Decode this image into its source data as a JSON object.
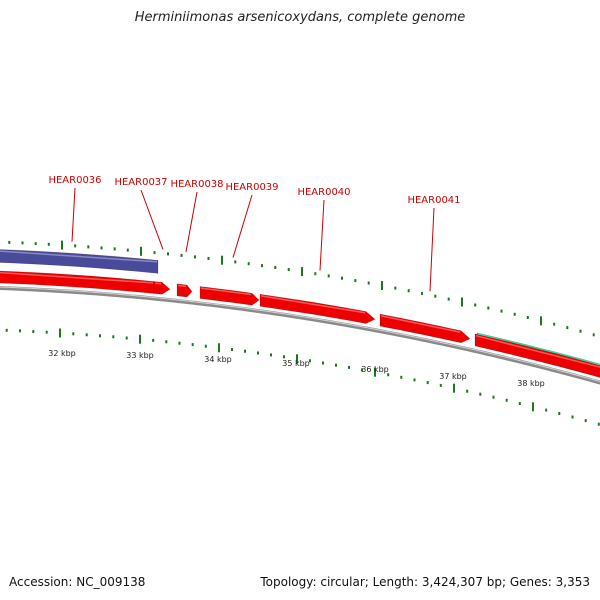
{
  "header": {
    "title": "Herminiimonas arsenicoxydans, complete genome"
  },
  "footer": {
    "accession": "Accession: NC_009138",
    "summary": "Topology: circular; Length: 3,424,307 bp; Genes: 3,353"
  },
  "colors": {
    "gene_label": "#cc0000",
    "gene_red": "#ee0000",
    "gene_purple": "#4a4a9a",
    "gene_green": "#22e8a0",
    "tick": "#1a7a1a",
    "backbone": "#8a8a8a"
  },
  "genes": [
    {
      "label": "HEAR0036"
    },
    {
      "label": "HEAR0037"
    },
    {
      "label": "HEAR0038"
    },
    {
      "label": "HEAR0039"
    },
    {
      "label": "HEAR0040"
    },
    {
      "label": "HEAR0041"
    }
  ],
  "scale": {
    "labels": [
      "32 kbp",
      "33 kbp",
      "34 kbp",
      "35 kbp",
      "36 kbp",
      "37 kbp",
      "38 kbp"
    ]
  }
}
